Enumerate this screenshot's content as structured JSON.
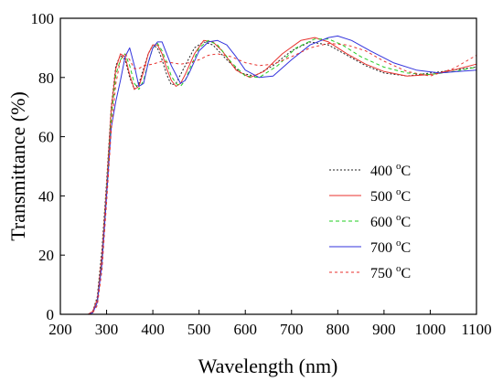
{
  "chart_data": {
    "type": "line",
    "xlabel": "Wavelength (nm)",
    "ylabel": "Transmittance (%)",
    "xlim": [
      200,
      1100
    ],
    "ylim": [
      0,
      100
    ],
    "xticks": [
      200,
      300,
      400,
      500,
      600,
      700,
      800,
      900,
      1000,
      1100
    ],
    "yticks": [
      0,
      20,
      40,
      60,
      80,
      100
    ],
    "grid": false,
    "legend_position": "center-right",
    "series": [
      {
        "name": "400 °C",
        "legend_main": "400 ",
        "legend_sup": "o",
        "legend_unit": "C",
        "color": "#222222",
        "dash": "2,2",
        "x": [
          200,
          260,
          270,
          280,
          290,
          300,
          310,
          320,
          330,
          340,
          350,
          360,
          370,
          380,
          390,
          400,
          410,
          420,
          430,
          440,
          450,
          470,
          490,
          510,
          530,
          560,
          590,
          620,
          660,
          700,
          740,
          780,
          820,
          860,
          900,
          950,
          1000,
          1050,
          1100
        ],
        "y": [
          0,
          0,
          1,
          6,
          22,
          45,
          70,
          84,
          87.5,
          86,
          80,
          76,
          78,
          83,
          88,
          91,
          90,
          86,
          81,
          77.5,
          78,
          84,
          90,
          92,
          91,
          86,
          81.5,
          80.5,
          84,
          89,
          92,
          91,
          87.5,
          84,
          81.5,
          80.5,
          81.5,
          82.5,
          83.5
        ]
      },
      {
        "name": "500 °C",
        "legend_main": "500 ",
        "legend_sup": "o",
        "legend_unit": "C",
        "color": "#e8322e",
        "dash": "",
        "x": [
          200,
          260,
          270,
          280,
          290,
          300,
          310,
          320,
          330,
          340,
          350,
          360,
          370,
          380,
          390,
          400,
          410,
          420,
          430,
          440,
          450,
          460,
          470,
          490,
          510,
          530,
          550,
          580,
          610,
          640,
          680,
          720,
          750,
          780,
          820,
          860,
          900,
          950,
          1000,
          1050,
          1100
        ],
        "y": [
          0,
          0,
          1,
          5,
          20,
          43,
          69,
          83,
          88,
          87,
          81,
          76,
          77,
          82,
          88,
          91,
          91,
          88,
          83,
          79,
          77,
          78,
          81,
          88,
          92.5,
          92,
          89,
          82.5,
          80,
          82,
          88,
          92.5,
          93.5,
          92,
          88,
          84.5,
          82,
          80.5,
          81,
          82.5,
          84.5
        ]
      },
      {
        "name": "600 °C",
        "legend_main": "600 ",
        "legend_sup": "o",
        "legend_unit": "C",
        "color": "#22cc22",
        "dash": "4,3",
        "x": [
          200,
          260,
          270,
          280,
          290,
          300,
          310,
          320,
          330,
          340,
          350,
          360,
          370,
          380,
          390,
          400,
          410,
          420,
          430,
          440,
          450,
          460,
          470,
          480,
          500,
          520,
          540,
          570,
          600,
          630,
          670,
          710,
          750,
          780,
          810,
          850,
          900,
          950,
          1000,
          1050,
          1100
        ],
        "y": [
          0,
          0,
          0.5,
          4,
          18,
          41,
          66,
          81,
          86,
          88,
          84,
          78,
          76,
          79,
          85,
          90,
          91.5,
          89,
          85,
          80.5,
          78,
          77,
          79,
          83,
          90,
          92.5,
          91,
          85,
          80.5,
          80,
          84,
          90,
          93,
          93,
          91,
          87,
          83.5,
          81.5,
          81,
          82,
          83.5
        ]
      },
      {
        "name": "700 °C",
        "legend_main": "700 ",
        "legend_sup": "o",
        "legend_unit": "C",
        "color": "#3333dd",
        "dash": "",
        "x": [
          200,
          260,
          270,
          280,
          290,
          300,
          310,
          320,
          330,
          340,
          350,
          360,
          370,
          380,
          390,
          400,
          410,
          420,
          430,
          440,
          450,
          460,
          470,
          480,
          500,
          520,
          540,
          560,
          580,
          600,
          630,
          660,
          700,
          740,
          780,
          800,
          830,
          870,
          920,
          970,
          1020,
          1060,
          1100
        ],
        "y": [
          0,
          0,
          0.5,
          4,
          17,
          40,
          63,
          72,
          79,
          87,
          90,
          84,
          77,
          78,
          85,
          90,
          92,
          92,
          88,
          84,
          81,
          78,
          79,
          82,
          89,
          92,
          92.5,
          91,
          87,
          82.5,
          80,
          80.5,
          86,
          91,
          93.5,
          94,
          92.5,
          89,
          85,
          82.5,
          81.5,
          82,
          82.5
        ]
      },
      {
        "name": "750 °C",
        "legend_main": "750 ",
        "legend_sup": "o",
        "legend_unit": "C",
        "color": "#e8322e",
        "dash": "3,3",
        "x": [
          200,
          260,
          270,
          280,
          290,
          300,
          310,
          320,
          330,
          340,
          350,
          360,
          370,
          380,
          400,
          420,
          440,
          460,
          480,
          500,
          520,
          540,
          570,
          600,
          630,
          660,
          700,
          740,
          780,
          820,
          860,
          900,
          950,
          1000,
          1050,
          1100
        ],
        "y": [
          0,
          0,
          0.5,
          3,
          15,
          38,
          62,
          78,
          86,
          88,
          86,
          83,
          83,
          84,
          84.5,
          85.5,
          85,
          84.5,
          85,
          86,
          87.5,
          88,
          87,
          85,
          84,
          84.5,
          87,
          90,
          91.5,
          91,
          89,
          85.5,
          82,
          80.5,
          83,
          87.5
        ]
      }
    ]
  }
}
